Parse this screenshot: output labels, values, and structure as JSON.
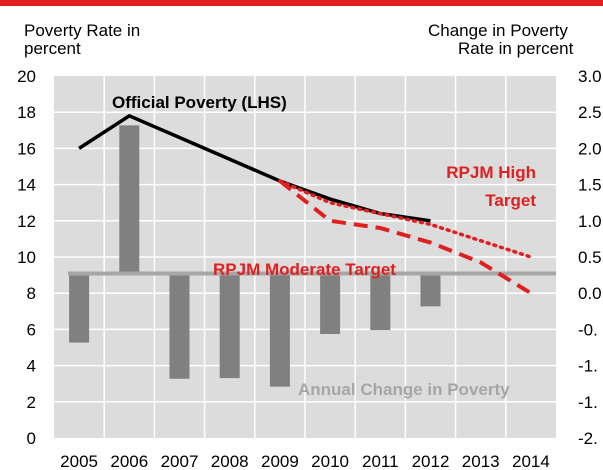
{
  "chart_data": {
    "type": "bar",
    "categories": [
      "2005",
      "2006",
      "2007",
      "2008",
      "2009",
      "2010",
      "2011",
      "2012",
      "2013",
      "2014"
    ],
    "left_axis": {
      "label_line1": "Poverty Rate in",
      "label_line2": "percent",
      "ylim": [
        0,
        20
      ],
      "ticks": [
        "0",
        "2",
        "4",
        "6",
        "8",
        "10",
        "12",
        "14",
        "16",
        "18",
        "20"
      ]
    },
    "right_axis": {
      "label_line1": "Change in Poverty",
      "label_line2": "Rate in percent",
      "ylim": [
        -2.5,
        3.0
      ],
      "ticks": [
        "-2.",
        "-1.",
        "-1.",
        "-0.",
        "0.0",
        "0.5",
        "1.0",
        "1.5",
        "2.0",
        "2.5",
        "3.0"
      ]
    },
    "bar_series": {
      "name": "Annual Change in Poverty",
      "axis": "right",
      "values": [
        -1.05,
        2.25,
        -1.6,
        -1.59,
        -1.72,
        -0.92,
        -0.86,
        -0.5
      ],
      "color": "#808080"
    },
    "line_series": [
      {
        "name": "Official Poverty (LHS)",
        "axis": "left",
        "style": "solid",
        "color": "#000000",
        "x": [
          "2005",
          "2006",
          "2007",
          "2008",
          "2009",
          "2010",
          "2011",
          "2012"
        ],
        "values": [
          16.0,
          17.8,
          16.6,
          15.4,
          14.2,
          13.2,
          12.4,
          12.0
        ]
      },
      {
        "name": "RPJM High Target",
        "label_line1": "RPJM High",
        "label_line2": "Target",
        "axis": "left",
        "style": "dotted",
        "color": "#e02020",
        "x": [
          "2009",
          "2010",
          "2011",
          "2012",
          "2013",
          "2014"
        ],
        "values": [
          14.2,
          13.0,
          12.4,
          11.8,
          10.9,
          10.0
        ]
      },
      {
        "name": "RPJM Moderate Target",
        "axis": "left",
        "style": "dashed",
        "color": "#e02020",
        "x": [
          "2009",
          "2010",
          "2011",
          "2012",
          "2013",
          "2014"
        ],
        "values": [
          14.2,
          12.0,
          11.6,
          10.8,
          9.7,
          8.0
        ]
      }
    ],
    "zero_line_color": "#a6a6a6",
    "grid_color": "#ffffff",
    "plot_background": "#dcdcdc",
    "grid": true
  }
}
